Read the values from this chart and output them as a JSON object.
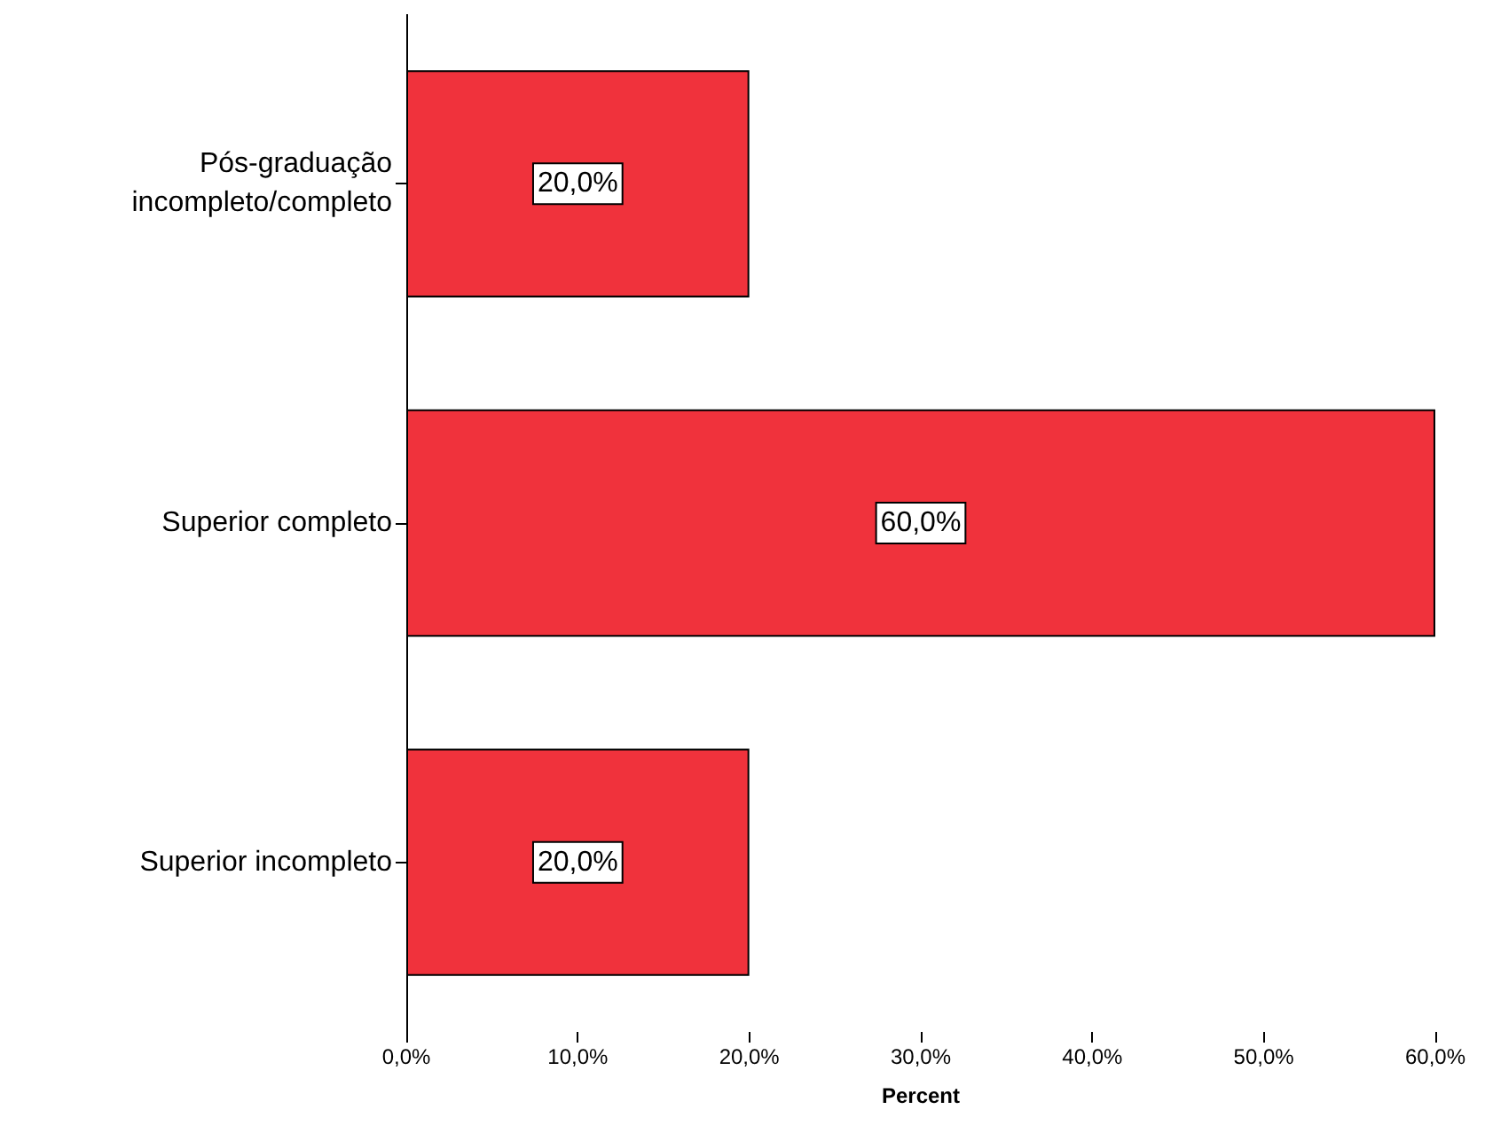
{
  "chart_data": {
    "type": "bar",
    "orientation": "horizontal",
    "xlabel": "Percent",
    "categories": [
      "Pós-graduação\nincompleto/completo",
      "Superior completo",
      "Superior incompleto"
    ],
    "values": [
      20,
      60,
      20
    ],
    "color": "#f0323c",
    "value_labels": [
      "20,0%",
      "60,0%",
      "20,0%"
    ],
    "xlim": [
      0,
      60
    ],
    "xticks": [
      {
        "value": 0,
        "label": "0,0%"
      },
      {
        "value": 10,
        "label": "10,0%"
      },
      {
        "value": 20,
        "label": "20,0%"
      },
      {
        "value": 30,
        "label": "30,0%"
      },
      {
        "value": 40,
        "label": "40,0%"
      },
      {
        "value": 50,
        "label": "50,0%"
      },
      {
        "value": 60,
        "label": "60,0%"
      }
    ],
    "grid": false
  }
}
